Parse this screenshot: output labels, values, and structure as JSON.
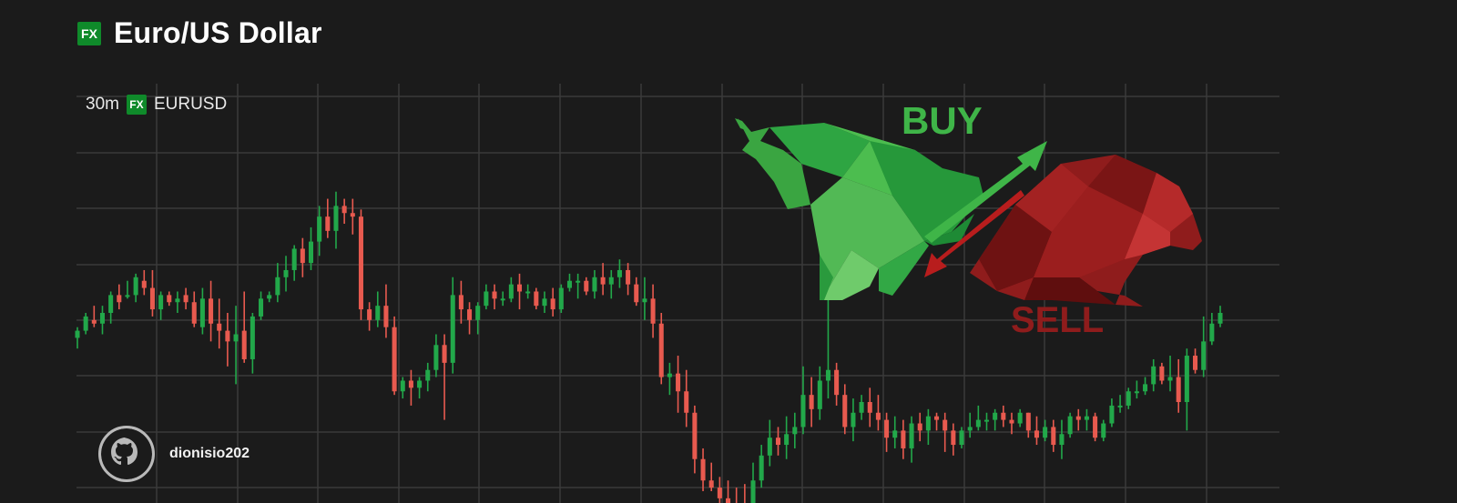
{
  "header": {
    "badge": "FX",
    "title": "Euro/US Dollar"
  },
  "legend": {
    "interval": "30m",
    "badge": "FX",
    "symbol": "EURUSD"
  },
  "watermark": {
    "username": "dionisio202",
    "icon": "github-octocat-icon"
  },
  "logo": {
    "buy_text": "BUY",
    "sell_text": "SELL"
  },
  "colors": {
    "background": "#1b1b1b",
    "grid": "#3a3a3a",
    "up": "#22a84a",
    "down": "#e85a4f",
    "badge": "#0f8a2a",
    "bull": "#3fb548",
    "bear": "#8f1c1c"
  },
  "chart_data": {
    "type": "candlestick",
    "interval": "30m",
    "symbol": "EURUSD",
    "grid": true,
    "ylim": [
      0,
      100
    ],
    "candles": [
      [
        43,
        45,
        40,
        46
      ],
      [
        45,
        49,
        44,
        50
      ],
      [
        48,
        47,
        46,
        52
      ],
      [
        47,
        50,
        44,
        52
      ],
      [
        50,
        55,
        47,
        56
      ],
      [
        55,
        53,
        51,
        58
      ],
      [
        55,
        55,
        54,
        59
      ],
      [
        55,
        60,
        53,
        61
      ],
      [
        59,
        57,
        55,
        62
      ],
      [
        57,
        51,
        49,
        62
      ],
      [
        51,
        55,
        48,
        56
      ],
      [
        55,
        53,
        52,
        56
      ],
      [
        53,
        54,
        50,
        56
      ],
      [
        55,
        53,
        51,
        57
      ],
      [
        53,
        47,
        46,
        56
      ],
      [
        46,
        54,
        44,
        57
      ],
      [
        54,
        47,
        42,
        59
      ],
      [
        47,
        45,
        40,
        54
      ],
      [
        45,
        42,
        35,
        50
      ],
      [
        42,
        44,
        30,
        52
      ],
      [
        45,
        37,
        36,
        56
      ],
      [
        37,
        49,
        33,
        50
      ],
      [
        49,
        54,
        48,
        56
      ],
      [
        54,
        55,
        53,
        56
      ],
      [
        55,
        60,
        53,
        64
      ],
      [
        60,
        62,
        56,
        66
      ],
      [
        62,
        68,
        59,
        69
      ],
      [
        68,
        64,
        60,
        71
      ],
      [
        64,
        70,
        62,
        74
      ],
      [
        70,
        77,
        66,
        80
      ],
      [
        77,
        73,
        71,
        82
      ],
      [
        73,
        80,
        68,
        84
      ],
      [
        80,
        78,
        75,
        82
      ],
      [
        78,
        77,
        72,
        82
      ],
      [
        77,
        51,
        48,
        79
      ],
      [
        51,
        48,
        45,
        53
      ],
      [
        48,
        52,
        46,
        56
      ],
      [
        52,
        46,
        43,
        58
      ],
      [
        46,
        28,
        27,
        49
      ],
      [
        28,
        31,
        26,
        32
      ],
      [
        31,
        29,
        24,
        34
      ],
      [
        29,
        31,
        26,
        32
      ],
      [
        31,
        34,
        28,
        36
      ],
      [
        34,
        41,
        32,
        44
      ],
      [
        41,
        36,
        20,
        44
      ],
      [
        36,
        55,
        33,
        60
      ],
      [
        55,
        51,
        47,
        59
      ],
      [
        51,
        48,
        44,
        53
      ],
      [
        48,
        52,
        44,
        53
      ],
      [
        52,
        56,
        51,
        58
      ],
      [
        56,
        54,
        51,
        58
      ],
      [
        54,
        54,
        52,
        56
      ],
      [
        54,
        58,
        53,
        60
      ],
      [
        58,
        56,
        51,
        61
      ],
      [
        56,
        56,
        54,
        58
      ],
      [
        56,
        52,
        51,
        57
      ],
      [
        52,
        54,
        50,
        56
      ],
      [
        54,
        51,
        49,
        57
      ],
      [
        51,
        57,
        50,
        58
      ],
      [
        57,
        59,
        56,
        61
      ],
      [
        59,
        59,
        54,
        61
      ],
      [
        59,
        56,
        55,
        60
      ],
      [
        56,
        60,
        54,
        62
      ],
      [
        60,
        58,
        55,
        64
      ],
      [
        58,
        60,
        54,
        62
      ],
      [
        60,
        62,
        57,
        65
      ],
      [
        62,
        58,
        55,
        64
      ],
      [
        58,
        53,
        52,
        60
      ],
      [
        53,
        54,
        48,
        60
      ],
      [
        54,
        47,
        43,
        58
      ],
      [
        47,
        32,
        30,
        50
      ],
      [
        32,
        33,
        27,
        36
      ],
      [
        33,
        28,
        22,
        38
      ],
      [
        28,
        22,
        18,
        34
      ],
      [
        22,
        9,
        5,
        24
      ],
      [
        9,
        3,
        0,
        12
      ],
      [
        3,
        1,
        0,
        8
      ],
      [
        1,
        -2,
        -4,
        4
      ],
      [
        -2,
        -4,
        -6,
        3
      ],
      [
        -4,
        -5,
        -8,
        1
      ],
      [
        -5,
        -6,
        -10,
        2
      ],
      [
        -6,
        3,
        -8,
        8
      ],
      [
        3,
        10,
        1,
        13
      ],
      [
        10,
        15,
        7,
        20
      ],
      [
        15,
        13,
        10,
        18
      ],
      [
        13,
        16,
        9,
        21
      ],
      [
        16,
        18,
        12,
        22
      ],
      [
        18,
        27,
        16,
        35
      ],
      [
        27,
        23,
        18,
        32
      ],
      [
        23,
        31,
        20,
        35
      ],
      [
        31,
        34,
        26,
        54
      ],
      [
        34,
        27,
        24,
        36
      ],
      [
        27,
        18,
        16,
        30
      ],
      [
        18,
        22,
        14,
        26
      ],
      [
        22,
        25,
        20,
        27
      ],
      [
        25,
        22,
        18,
        29
      ],
      [
        22,
        20,
        17,
        27
      ],
      [
        20,
        15,
        11,
        22
      ],
      [
        15,
        17,
        12,
        21
      ],
      [
        17,
        12,
        9,
        20
      ],
      [
        12,
        19,
        8,
        21
      ],
      [
        19,
        17,
        14,
        22
      ],
      [
        17,
        21,
        13,
        23
      ],
      [
        21,
        20,
        17,
        22
      ],
      [
        20,
        17,
        11,
        22
      ],
      [
        17,
        13,
        10,
        19
      ],
      [
        13,
        17,
        12,
        18
      ],
      [
        17,
        18,
        15,
        22
      ],
      [
        18,
        20,
        17,
        24
      ],
      [
        20,
        20,
        17,
        22
      ],
      [
        20,
        22,
        17,
        23
      ],
      [
        22,
        20,
        18,
        24
      ],
      [
        20,
        19,
        16,
        22
      ],
      [
        19,
        22,
        18,
        23
      ],
      [
        22,
        17,
        15,
        22
      ],
      [
        17,
        15,
        13,
        21
      ],
      [
        15,
        18,
        14,
        20
      ],
      [
        18,
        13,
        11,
        20
      ],
      [
        13,
        16,
        9,
        20
      ],
      [
        16,
        21,
        15,
        22
      ],
      [
        21,
        20,
        17,
        23
      ],
      [
        20,
        21,
        17,
        23
      ],
      [
        21,
        15,
        14,
        22
      ],
      [
        15,
        19,
        14,
        20
      ],
      [
        19,
        24,
        18,
        26
      ],
      [
        24,
        24,
        22,
        27
      ],
      [
        24,
        28,
        23,
        29
      ],
      [
        28,
        28,
        26,
        31
      ],
      [
        28,
        30,
        27,
        32
      ],
      [
        30,
        35,
        28,
        37
      ],
      [
        35,
        31,
        30,
        36
      ],
      [
        31,
        32,
        28,
        38
      ],
      [
        32,
        25,
        22,
        37
      ],
      [
        25,
        38,
        17,
        40
      ],
      [
        38,
        34,
        33,
        40
      ],
      [
        34,
        42,
        32,
        49
      ],
      [
        42,
        47,
        41,
        50
      ],
      [
        47,
        50,
        46,
        52
      ]
    ]
  }
}
